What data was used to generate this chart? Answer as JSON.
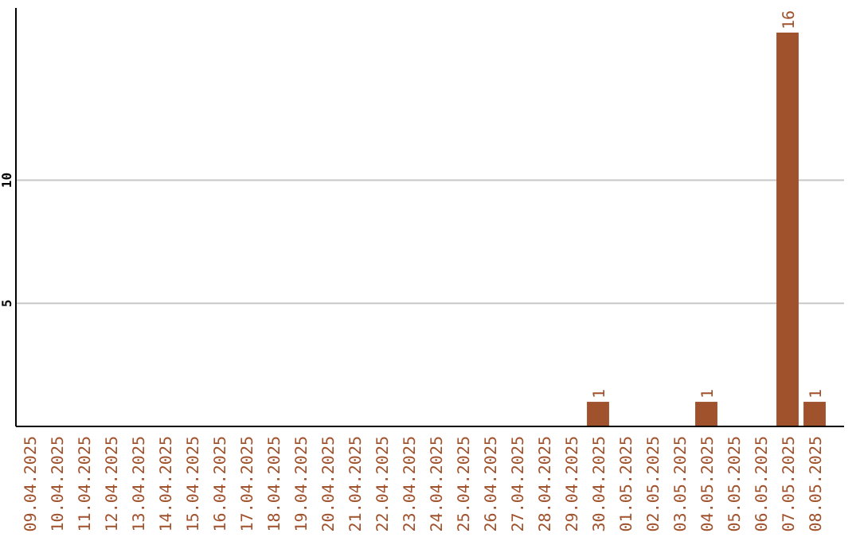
{
  "chart_data": {
    "type": "bar",
    "categories": [
      "09.04.2025",
      "10.04.2025",
      "11.04.2025",
      "12.04.2025",
      "13.04.2025",
      "14.04.2025",
      "15.04.2025",
      "16.04.2025",
      "17.04.2025",
      "18.04.2025",
      "19.04.2025",
      "20.04.2025",
      "21.04.2025",
      "22.04.2025",
      "23.04.2025",
      "24.04.2025",
      "25.04.2025",
      "26.04.2025",
      "27.04.2025",
      "28.04.2025",
      "29.04.2025",
      "30.04.2025",
      "01.05.2025",
      "02.05.2025",
      "03.05.2025",
      "04.05.2025",
      "05.05.2025",
      "06.05.2025",
      "07.05.2025",
      "08.05.2025"
    ],
    "values": [
      0,
      0,
      0,
      0,
      0,
      0,
      0,
      0,
      0,
      0,
      0,
      0,
      0,
      0,
      0,
      0,
      0,
      0,
      0,
      0,
      0,
      1,
      0,
      0,
      0,
      1,
      0,
      0,
      16,
      1
    ],
    "value_labels": [
      null,
      null,
      null,
      null,
      null,
      null,
      null,
      null,
      null,
      null,
      null,
      null,
      null,
      null,
      null,
      null,
      null,
      null,
      null,
      null,
      null,
      "1",
      null,
      null,
      null,
      "1",
      null,
      null,
      "16",
      "1"
    ],
    "color": "#a0522d",
    "ylim": [
      0,
      17
    ],
    "yticks": [
      5,
      10
    ],
    "grid": "y"
  }
}
